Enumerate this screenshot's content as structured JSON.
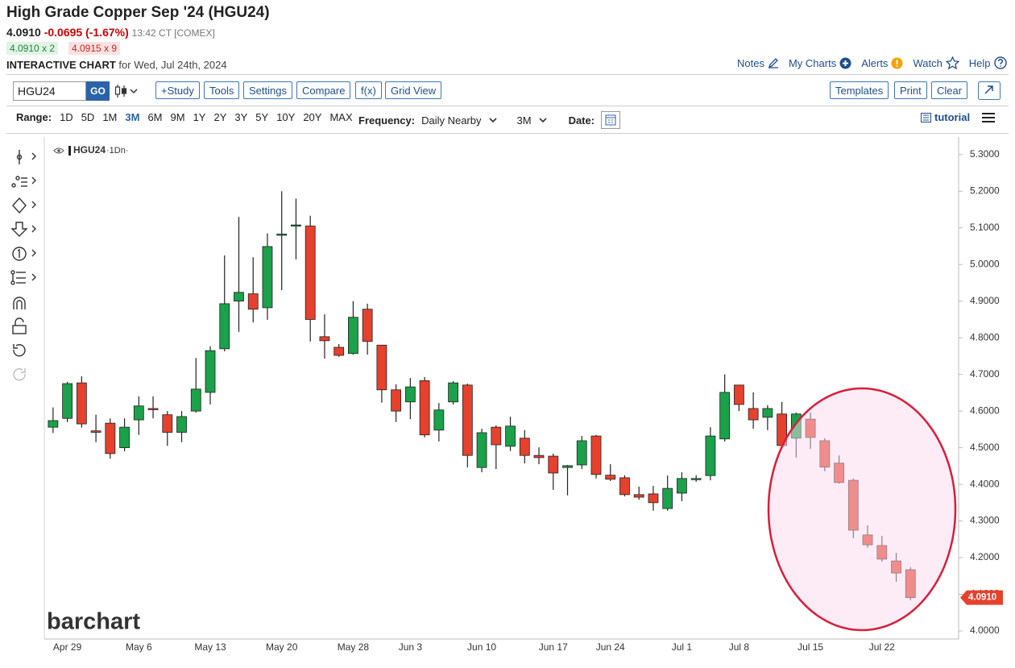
{
  "header": {
    "title": "High Grade Copper Sep '24 (HGU24)",
    "last": "4.0910",
    "change": "-0.0695 (-1.67%)",
    "time": "13:42 CT [COMEX]",
    "bid": "4.0910 x 2",
    "ask": "4.0915 x 9",
    "chart_label": "INTERACTIVE CHART",
    "chart_date": "for Wed, Jul 24th, 2024",
    "links": [
      "Notes",
      "My Charts",
      "Alerts",
      "Watch",
      "Help"
    ]
  },
  "toolbar": {
    "symbol": "HGU24",
    "go": "GO",
    "buttons": [
      "+Study",
      "Tools",
      "Settings",
      "Compare",
      "f(x)",
      "Grid View"
    ],
    "right_buttons": [
      "Templates",
      "Print",
      "Clear"
    ]
  },
  "range_bar": {
    "label": "Range:",
    "options": [
      "1D",
      "5D",
      "1M",
      "3M",
      "6M",
      "9M",
      "1Y",
      "2Y",
      "3Y",
      "5Y",
      "10Y",
      "20Y",
      "MAX"
    ],
    "active_index": 3,
    "frequency_label": "Frequency:",
    "frequency": "Daily Nearby",
    "period": "3M",
    "date_label": "Date:",
    "tutorial": "tutorial"
  },
  "chart_data": {
    "type": "candlestick",
    "legend_suffix": "·1Dn·",
    "watermark": "barchart",
    "categories": [
      null,
      "Apr 29",
      null,
      null,
      null,
      null,
      "May 6",
      null,
      null,
      null,
      null,
      "May 13",
      null,
      null,
      null,
      null,
      "May 20",
      null,
      null,
      null,
      null,
      "May 28",
      null,
      null,
      null,
      "Jun 3",
      null,
      null,
      null,
      null,
      "Jun 10",
      null,
      null,
      null,
      null,
      "Jun 17",
      null,
      null,
      null,
      "Jun 24",
      null,
      null,
      null,
      null,
      "Jul 1",
      null,
      null,
      null,
      "Jul 8",
      null,
      null,
      null,
      null,
      "Jul 15",
      null,
      null,
      null,
      null,
      "Jul 22",
      null,
      null
    ],
    "series": [
      {
        "name": "HGU24",
        "up_color": "#1aa14a",
        "down_color": "#e5412d",
        "open": [
          4.556,
          4.58,
          4.677,
          4.546,
          4.567,
          4.5,
          4.576,
          4.607,
          4.59,
          4.542,
          4.6,
          4.651,
          4.77,
          4.9,
          4.92,
          4.882,
          5.08,
          5.105,
          5.105,
          4.803,
          4.774,
          4.757,
          4.878,
          4.78,
          4.658,
          4.625,
          4.683,
          4.548,
          4.625,
          4.671,
          4.446,
          4.556,
          4.504,
          4.526,
          4.479,
          4.477,
          4.446,
          4.453,
          4.532,
          4.425,
          4.418,
          4.372,
          4.374,
          4.334,
          4.376,
          4.415,
          4.424,
          4.524,
          4.671,
          4.607,
          4.583,
          4.592,
          4.526,
          4.578,
          4.519,
          4.458,
          4.411,
          4.262,
          4.233,
          4.191,
          4.167
        ],
        "high": [
          4.61,
          4.68,
          4.695,
          4.59,
          4.58,
          4.58,
          4.64,
          4.64,
          4.6,
          4.6,
          4.745,
          4.777,
          5.025,
          5.13,
          5.02,
          5.085,
          5.2,
          5.18,
          5.133,
          4.864,
          4.783,
          4.9,
          4.893,
          4.78,
          4.673,
          4.69,
          4.693,
          4.622,
          4.682,
          4.675,
          4.552,
          4.561,
          4.585,
          4.548,
          4.501,
          4.484,
          4.453,
          4.532,
          4.535,
          4.455,
          4.425,
          4.394,
          4.396,
          4.424,
          4.433,
          4.425,
          4.556,
          4.7,
          4.671,
          4.651,
          4.616,
          4.625,
          4.596,
          4.596,
          4.526,
          4.479,
          4.416,
          4.288,
          4.259,
          4.213,
          4.174
        ],
        "low": [
          4.54,
          4.57,
          4.555,
          4.515,
          4.47,
          4.49,
          4.535,
          4.58,
          4.505,
          4.515,
          4.596,
          4.618,
          4.763,
          4.816,
          4.842,
          4.849,
          4.93,
          5.014,
          4.79,
          4.743,
          4.748,
          4.754,
          4.754,
          4.623,
          4.57,
          4.578,
          4.528,
          4.517,
          4.618,
          4.446,
          4.433,
          4.442,
          4.491,
          4.457,
          4.455,
          4.385,
          4.37,
          4.442,
          4.416,
          4.409,
          4.367,
          4.358,
          4.328,
          4.328,
          4.354,
          4.407,
          4.411,
          4.517,
          4.6,
          4.552,
          4.548,
          4.497,
          4.473,
          4.497,
          4.436,
          4.402,
          4.253,
          4.227,
          4.189,
          4.134,
          4.084
        ],
        "close": [
          4.574,
          4.675,
          4.565,
          4.542,
          4.484,
          4.556,
          4.614,
          4.606,
          4.542,
          4.585,
          4.66,
          4.765,
          4.893,
          4.924,
          4.878,
          5.049,
          5.083,
          5.108,
          4.85,
          4.792,
          4.752,
          4.856,
          4.79,
          4.658,
          4.6,
          4.666,
          4.535,
          4.603,
          4.677,
          4.479,
          4.541,
          4.508,
          4.559,
          4.479,
          4.473,
          4.431,
          4.451,
          4.519,
          4.427,
          4.414,
          4.372,
          4.365,
          4.35,
          4.389,
          4.416,
          4.416,
          4.532,
          4.651,
          4.618,
          4.576,
          4.607,
          4.506,
          4.592,
          4.528,
          4.447,
          4.405,
          4.275,
          4.235,
          4.196,
          4.158,
          4.091
        ]
      }
    ],
    "last_price": {
      "value": 4.091,
      "label": "4.0910"
    },
    "ylim": [
      3.978,
      5.337
    ],
    "yticks": [
      {
        "value": 4.0,
        "label": "4.0000"
      },
      {
        "value": 4.1,
        "label": "4.1000"
      },
      {
        "value": 4.2,
        "label": "4.2000"
      },
      {
        "value": 4.3,
        "label": "4.3000"
      },
      {
        "value": 4.4,
        "label": "4.4000"
      },
      {
        "value": 4.5,
        "label": "4.5000"
      },
      {
        "value": 4.6,
        "label": "4.6000"
      },
      {
        "value": 4.7,
        "label": "4.7000"
      },
      {
        "value": 4.8,
        "label": "4.8000"
      },
      {
        "value": 4.9,
        "label": "4.9000"
      },
      {
        "value": 5.0,
        "label": "5.0000"
      },
      {
        "value": 5.1,
        "label": "5.1000"
      },
      {
        "value": 5.2,
        "label": "5.2000"
      },
      {
        "value": 5.3,
        "label": "5.3000"
      }
    ],
    "grid": false
  }
}
